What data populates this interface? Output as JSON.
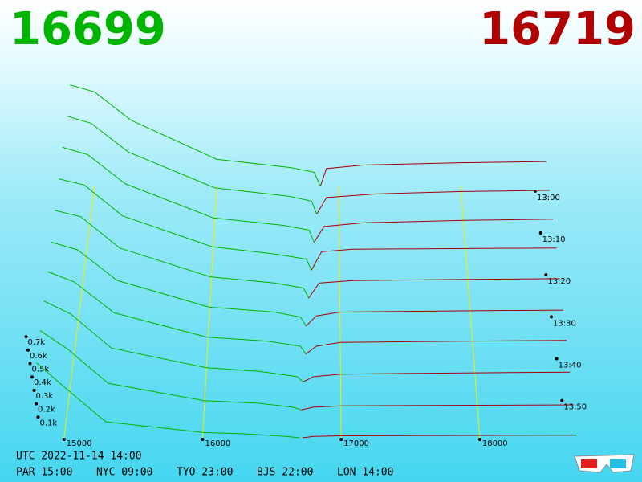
{
  "chart_data": {
    "type": "depth3d",
    "bid_price": 16699,
    "ask_price": 16719,
    "bid_color": "#00b400",
    "ask_color": "#a80000",
    "xlim": [
      14700,
      18800
    ],
    "xticks": [
      15000,
      16000,
      17000,
      18000
    ],
    "zlim": [
      0,
      1000
    ],
    "zticks": [
      {
        "value": 100,
        "label": "0.1k"
      },
      {
        "value": 200,
        "label": "0.2k"
      },
      {
        "value": 300,
        "label": "0.3k"
      },
      {
        "value": 400,
        "label": "0.4k"
      },
      {
        "value": 500,
        "label": "0.5k"
      },
      {
        "value": 600,
        "label": "0.6k"
      },
      {
        "value": 700,
        "label": "0.7k"
      }
    ],
    "times": [
      "13:00",
      "13:10",
      "13:20",
      "13:30",
      "13:40",
      "13:50"
    ],
    "snapshots": [
      {
        "bids": [
          [
            16850,
            0
          ],
          [
            16800,
            120
          ],
          [
            16600,
            160
          ],
          [
            16000,
            230
          ],
          [
            15300,
            560
          ],
          [
            15000,
            800
          ],
          [
            14800,
            860
          ]
        ],
        "asks": [
          [
            16850,
            0
          ],
          [
            16900,
            150
          ],
          [
            17200,
            180
          ],
          [
            18000,
            200
          ],
          [
            18700,
            210
          ]
        ]
      },
      {
        "bids": [
          [
            16820,
            0
          ],
          [
            16780,
            110
          ],
          [
            16600,
            150
          ],
          [
            16000,
            220
          ],
          [
            15300,
            520
          ],
          [
            15000,
            760
          ],
          [
            14800,
            820
          ]
        ],
        "asks": [
          [
            16820,
            0
          ],
          [
            16900,
            140
          ],
          [
            17300,
            170
          ],
          [
            18000,
            190
          ],
          [
            18700,
            200
          ]
        ]
      },
      {
        "bids": [
          [
            16800,
            0
          ],
          [
            16760,
            100
          ],
          [
            16550,
            140
          ],
          [
            16000,
            200
          ],
          [
            15300,
            480
          ],
          [
            15000,
            720
          ],
          [
            14800,
            780
          ]
        ],
        "asks": [
          [
            16800,
            0
          ],
          [
            16880,
            130
          ],
          [
            17200,
            160
          ],
          [
            18000,
            180
          ],
          [
            18700,
            190
          ]
        ]
      },
      {
        "bids": [
          [
            16780,
            0
          ],
          [
            16740,
            90
          ],
          [
            16500,
            130
          ],
          [
            16000,
            190
          ],
          [
            15300,
            440
          ],
          [
            15000,
            690
          ],
          [
            14800,
            740
          ]
        ],
        "asks": [
          [
            16780,
            0
          ],
          [
            16860,
            150
          ],
          [
            17100,
            170
          ],
          [
            18000,
            175
          ],
          [
            18700,
            180
          ]
        ]
      },
      {
        "bids": [
          [
            16760,
            0
          ],
          [
            16720,
            80
          ],
          [
            16500,
            120
          ],
          [
            16000,
            170
          ],
          [
            15300,
            400
          ],
          [
            15000,
            650
          ],
          [
            14800,
            700
          ]
        ],
        "asks": [
          [
            16760,
            0
          ],
          [
            16840,
            120
          ],
          [
            17100,
            140
          ],
          [
            18000,
            150
          ],
          [
            18700,
            155
          ]
        ]
      },
      {
        "bids": [
          [
            16740,
            0
          ],
          [
            16700,
            70
          ],
          [
            16500,
            110
          ],
          [
            16000,
            150
          ],
          [
            15300,
            360
          ],
          [
            15000,
            600
          ],
          [
            14800,
            660
          ]
        ],
        "asks": [
          [
            16740,
            0
          ],
          [
            16820,
            80
          ],
          [
            17000,
            110
          ],
          [
            18000,
            120
          ],
          [
            18700,
            125
          ]
        ]
      },
      {
        "bids": [
          [
            16740,
            0
          ],
          [
            16700,
            60
          ],
          [
            16450,
            100
          ],
          [
            16000,
            130
          ],
          [
            15300,
            320
          ],
          [
            15000,
            560
          ],
          [
            14800,
            640
          ]
        ],
        "asks": [
          [
            16740,
            0
          ],
          [
            16820,
            60
          ],
          [
            17000,
            90
          ],
          [
            18000,
            100
          ],
          [
            18700,
            105
          ]
        ]
      },
      {
        "bids": [
          [
            16720,
            0
          ],
          [
            16680,
            40
          ],
          [
            16400,
            80
          ],
          [
            16000,
            110
          ],
          [
            15300,
            260
          ],
          [
            15000,
            520
          ],
          [
            14800,
            620
          ]
        ],
        "asks": [
          [
            16720,
            0
          ],
          [
            16800,
            40
          ],
          [
            17000,
            60
          ],
          [
            18000,
            70
          ],
          [
            18700,
            75
          ]
        ]
      },
      {
        "bids": [
          [
            16710,
            0
          ],
          [
            16650,
            20
          ],
          [
            16400,
            50
          ],
          [
            16000,
            70
          ],
          [
            15300,
            200
          ],
          [
            15000,
            460
          ],
          [
            14800,
            600
          ]
        ],
        "asks": [
          [
            16710,
            0
          ],
          [
            16800,
            20
          ],
          [
            17000,
            30
          ],
          [
            18000,
            35
          ],
          [
            18700,
            38
          ]
        ]
      },
      {
        "bids": [
          [
            16700,
            0
          ],
          [
            16600,
            10
          ],
          [
            16300,
            30
          ],
          [
            16000,
            40
          ],
          [
            15300,
            120
          ],
          [
            15000,
            380
          ],
          [
            14800,
            560
          ]
        ],
        "asks": [
          [
            16720,
            0
          ],
          [
            16800,
            10
          ],
          [
            17000,
            15
          ],
          [
            18000,
            18
          ],
          [
            18700,
            20
          ]
        ]
      }
    ],
    "utc": "UTC 2022-11-14 14:00",
    "clocks": [
      "PAR 15:00",
      "NYC 09:00",
      "TYO 23:00",
      "BJS 22:00",
      "LON 14:00"
    ]
  }
}
